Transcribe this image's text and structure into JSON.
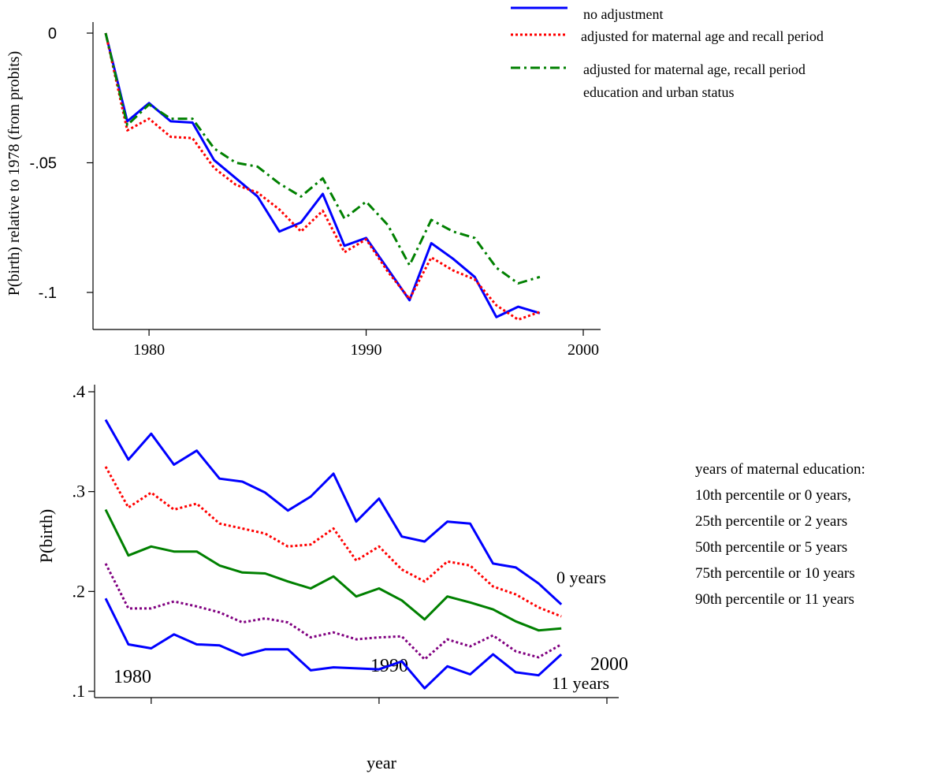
{
  "chart_data": [
    {
      "type": "line",
      "title": "",
      "xlabel": "",
      "ylabel": "P(birth) relative to 1978 (from probits)",
      "xlim": [
        1978,
        2000
      ],
      "ylim": [
        -0.113,
        0.001
      ],
      "xticks": [
        1980,
        1990,
        2000
      ],
      "yticks": [
        0,
        -0.05,
        -0.1
      ],
      "ytick_labels": [
        "0",
        "-.05",
        "-.1"
      ],
      "legend_position": "top-right",
      "x": [
        1978,
        1979,
        1980,
        1981,
        1982,
        1983,
        1984,
        1985,
        1986,
        1987,
        1988,
        1989,
        1990,
        1991,
        1992,
        1993,
        1994,
        1995,
        1996,
        1997,
        1998
      ],
      "series": [
        {
          "name": "no adjustment",
          "color": "#0000ff",
          "style": "solid",
          "values": [
            0,
            -0.034,
            -0.027,
            -0.034,
            -0.0345,
            -0.049,
            -0.056,
            -0.063,
            -0.0765,
            -0.073,
            -0.062,
            -0.082,
            -0.079,
            -0.091,
            -0.103,
            -0.081,
            -0.087,
            -0.094,
            -0.1095,
            -0.1055,
            -0.108
          ]
        },
        {
          "name": "adjusted for maternal age and recall period",
          "color": "#ff0000",
          "style": "dotted",
          "values": [
            0,
            -0.0375,
            -0.033,
            -0.04,
            -0.0405,
            -0.052,
            -0.0585,
            -0.0615,
            -0.068,
            -0.0765,
            -0.0685,
            -0.0845,
            -0.0795,
            -0.092,
            -0.1025,
            -0.0865,
            -0.0915,
            -0.095,
            -0.105,
            -0.1105,
            -0.1075
          ]
        },
        {
          "name": "adjusted for maternal age, recall period education and urban status",
          "name_lines": [
            "adjusted for maternal age, recall period",
            "education and urban status"
          ],
          "color": "#008000",
          "style": "dashdot",
          "values": [
            0,
            -0.0355,
            -0.0275,
            -0.033,
            -0.033,
            -0.0445,
            -0.05,
            -0.0515,
            -0.058,
            -0.063,
            -0.056,
            -0.0715,
            -0.065,
            -0.074,
            -0.0895,
            -0.072,
            -0.0765,
            -0.079,
            -0.0905,
            -0.0965,
            -0.094
          ]
        }
      ]
    },
    {
      "type": "line",
      "title": "",
      "xlabel": "year",
      "ylabel": "P(birth)",
      "xlim": [
        1977.8,
        2000
      ],
      "ylim": [
        0.09,
        0.4
      ],
      "xticks": [
        1980,
        1990,
        2000
      ],
      "yticks": [
        0.4,
        0.3,
        0.2,
        0.1
      ],
      "ytick_labels": [
        ".4",
        ".3",
        ".2",
        ".1"
      ],
      "legend_position": "right",
      "legend_lines": [
        "years of maternal education:",
        "10th percentile or 0 years,",
        "25th percentile or 2 years",
        "50th percentile or 5 years",
        "75th percentile or 10 years",
        "90th percentile or 11 years"
      ],
      "annotations": [
        {
          "text": "0 years",
          "x": 1998,
          "y": 0.214
        },
        {
          "text": "11 years",
          "x": 1998,
          "y": 0.117
        }
      ],
      "x": [
        1978,
        1979,
        1980,
        1981,
        1982,
        1983,
        1984,
        1985,
        1986,
        1987,
        1988,
        1989,
        1990,
        1991,
        1992,
        1993,
        1994,
        1995,
        1996,
        1997,
        1998
      ],
      "series": [
        {
          "color": "#0000ff",
          "style": "solid",
          "values": [
            0.372,
            0.332,
            0.358,
            0.327,
            0.341,
            0.313,
            0.31,
            0.299,
            0.281,
            0.295,
            0.318,
            0.27,
            0.293,
            0.255,
            0.25,
            0.27,
            0.268,
            0.228,
            0.224,
            0.208,
            0.187
          ]
        },
        {
          "color": "#ff0000",
          "style": "dotted",
          "values": [
            0.325,
            0.284,
            0.299,
            0.282,
            0.288,
            0.268,
            0.263,
            0.258,
            0.245,
            0.247,
            0.263,
            0.231,
            0.245,
            0.222,
            0.21,
            0.23,
            0.226,
            0.205,
            0.197,
            0.184,
            0.175
          ]
        },
        {
          "color": "#008000",
          "style": "solid",
          "values": [
            0.282,
            0.236,
            0.245,
            0.24,
            0.24,
            0.226,
            0.219,
            0.218,
            0.21,
            0.203,
            0.215,
            0.195,
            0.203,
            0.191,
            0.172,
            0.195,
            0.189,
            0.182,
            0.17,
            0.161,
            0.163
          ]
        },
        {
          "color": "#800080",
          "style": "dotted",
          "values": [
            0.228,
            0.183,
            0.183,
            0.19,
            0.185,
            0.179,
            0.169,
            0.173,
            0.169,
            0.154,
            0.159,
            0.152,
            0.154,
            0.155,
            0.132,
            0.152,
            0.145,
            0.156,
            0.14,
            0.134,
            0.147
          ]
        },
        {
          "color": "#0000ff",
          "style": "solid",
          "values": [
            0.193,
            0.147,
            0.143,
            0.157,
            0.147,
            0.146,
            0.136,
            0.142,
            0.142,
            0.121,
            0.124,
            0.123,
            0.122,
            0.13,
            0.103,
            0.125,
            0.117,
            0.137,
            0.119,
            0.116,
            0.137
          ]
        }
      ]
    }
  ]
}
